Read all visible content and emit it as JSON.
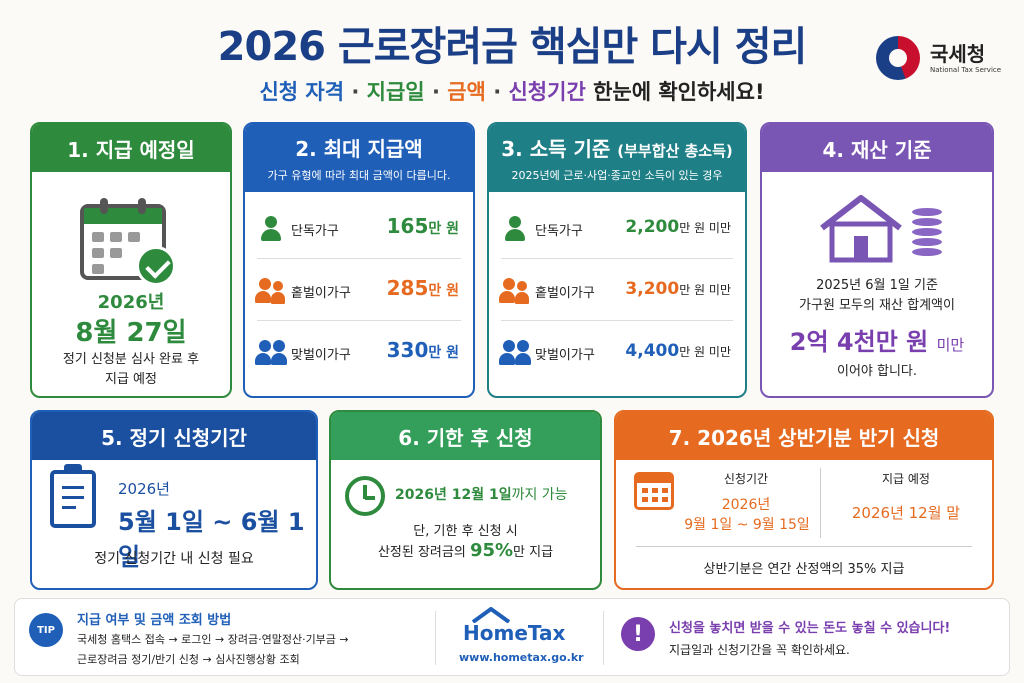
{
  "header": {
    "title": "2026 근로장려금 핵심만 다시 정리",
    "sub_1": "신청 자격",
    "sub_sep": "·",
    "sub_2": "지급일",
    "sub_3": "금액",
    "sub_4": "신청기간",
    "sub_tail": "한눈에 확인하세요!"
  },
  "logo": {
    "name": "국세청",
    "eng": "National Tax Service"
  },
  "card1": {
    "title": "1. 지급 예정일",
    "year": "2026년",
    "date": "8월 27일",
    "note1": "정기 신청분 심사 완료 후",
    "note2": "지급 예정"
  },
  "card2": {
    "title": "2. 최대 지급액",
    "subtitle": "가구 유형에 따라 최대 금액이 다릅니다.",
    "rows": [
      {
        "label": "단독가구",
        "amount": "165",
        "unit": "만 원"
      },
      {
        "label": "홑벌이가구",
        "amount": "285",
        "unit": "만 원"
      },
      {
        "label": "맞벌이가구",
        "amount": "330",
        "unit": "만 원"
      }
    ]
  },
  "card3": {
    "title": "3. 소득 기준",
    "title_small": "(부부합산 총소득)",
    "subtitle": "2025년에 근로·사업·종교인 소득이 있는 경우",
    "rows": [
      {
        "label": "단독가구",
        "amount": "2,200",
        "unit": "만 원 미만"
      },
      {
        "label": "홑벌이가구",
        "amount": "3,200",
        "unit": "만 원 미만"
      },
      {
        "label": "맞벌이가구",
        "amount": "4,400",
        "unit": "만 원 미만"
      }
    ]
  },
  "card4": {
    "title": "4. 재산 기준",
    "line1": "2025년 6월 1일 기준",
    "line2": "가구원 모두의 재산 합계액이",
    "big": "2억 4천만 원",
    "big_suffix": "미만",
    "end": "이어야 합니다."
  },
  "card5": {
    "title": "5. 정기 신청기간",
    "year": "2026년",
    "date": "5월 1일 ~ 6월 1일",
    "note": "정기 신청기간 내 신청 필요"
  },
  "card6": {
    "title": "6. 기한 후 신청",
    "date": "2026년 12월 1일",
    "date_suffix": "까지 가능",
    "note1": "단, 기한 후 신청 시",
    "note2_pre": "산정된 장려금의",
    "note2_pct": "95%",
    "note2_post": "만 지급"
  },
  "card7": {
    "title": "7. 2026년 상반기분 반기 신청",
    "label1": "신청기간",
    "value1a": "2026년",
    "value1b": "9월 1일 ~ 9월 15일",
    "label2": "지급 예정",
    "value2": "2026년 12월 말",
    "foot": "상반기분은 연간 산정액의 35% 지급"
  },
  "footer": {
    "tip_badge": "TIP",
    "tip_title": "지급 여부 및 금액 조회 방법",
    "tip_line1": "국세청 홈택스 접속 → 로그인 → 장려금·연말정산·기부금 →",
    "tip_line2": "근로장려금 정기/반기 신청 → 심사진행상황 조회",
    "hometax_name": "HomeTax",
    "hometax_url": "www.hometax.go.kr",
    "warn_icon": "!",
    "warn_title": "신청을 놓치면 받을 수 있는 돈도 놓칠 수 있습니다!",
    "warn_sub": "지급일과 신청기간을 꼭 확인하세요."
  },
  "colors": {
    "navy": "#1b3f86",
    "blue": "#1f5fb8",
    "green": "#2e8a3c",
    "teal": "#1f7f86",
    "orange": "#e66a1f",
    "purple": "#7a3fae"
  },
  "icons": [
    "calendar-check-icon",
    "person-icon",
    "house-icon",
    "coins-icon",
    "clipboard-icon",
    "clock-icon",
    "calendar-icon",
    "tip-icon",
    "warning-icon"
  ]
}
